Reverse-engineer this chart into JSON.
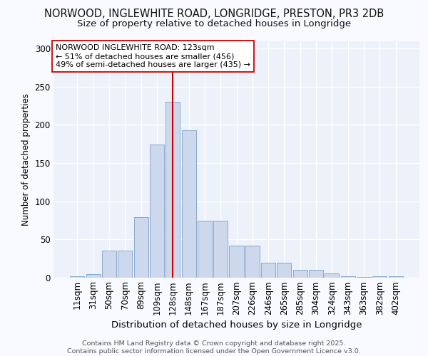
{
  "title_line1": "NORWOOD, INGLEWHITE ROAD, LONGRIDGE, PRESTON, PR3 2DB",
  "title_line2": "Size of property relative to detached houses in Longridge",
  "xlabel": "Distribution of detached houses by size in Longridge",
  "ylabel": "Number of detached properties",
  "categories": [
    "11sqm",
    "31sqm",
    "50sqm",
    "70sqm",
    "89sqm",
    "109sqm",
    "128sqm",
    "148sqm",
    "167sqm",
    "187sqm",
    "207sqm",
    "226sqm",
    "246sqm",
    "265sqm",
    "285sqm",
    "304sqm",
    "324sqm",
    "343sqm",
    "363sqm",
    "382sqm",
    "402sqm"
  ],
  "values": [
    2,
    5,
    35,
    35,
    79,
    174,
    230,
    193,
    75,
    75,
    42,
    42,
    20,
    20,
    10,
    10,
    6,
    2,
    1,
    2,
    2
  ],
  "bar_color": "#cdd8ec",
  "bar_edge_color": "#7aa0cc",
  "fig_bg_color": "#f8faff",
  "plot_bg_color": "#edf1fa",
  "grid_color": "#ffffff",
  "vline_color": "#cc0000",
  "vline_pos": 6.0,
  "annotation_text": "NORWOOD INGLEWHITE ROAD: 123sqm\n← 51% of detached houses are smaller (456)\n49% of semi-detached houses are larger (435) →",
  "annotation_box_facecolor": "#ffffff",
  "annotation_box_edgecolor": "#cc0000",
  "footer_text": "Contains HM Land Registry data © Crown copyright and database right 2025.\nContains public sector information licensed under the Open Government Licence v3.0.",
  "ylim": [
    0,
    310
  ],
  "yticks": [
    0,
    50,
    100,
    150,
    200,
    250,
    300
  ],
  "title1_fontsize": 10.5,
  "title2_fontsize": 9.5,
  "ylabel_fontsize": 8.5,
  "xlabel_fontsize": 9.5,
  "tick_fontsize": 8.5,
  "ann_fontsize": 8.0,
  "footer_fontsize": 6.8
}
